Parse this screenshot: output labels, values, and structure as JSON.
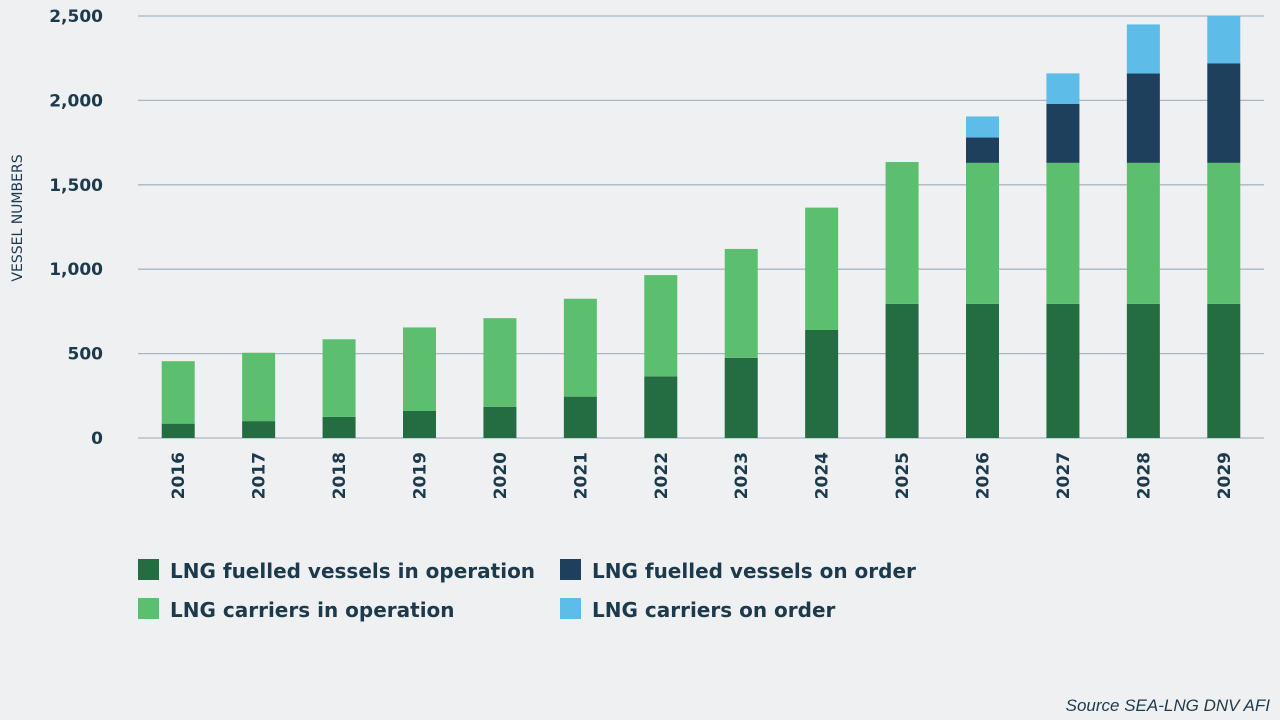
{
  "colors": {
    "background": "#eef0f1",
    "gridline": "#a9b6c2",
    "text": "#1d3a4d",
    "fuelled_operation": "#246c41",
    "fuelled_order": "#1f405c",
    "carriers_operation": "#5cbf6f",
    "carriers_order": "#5dbde8"
  },
  "chart_data": {
    "type": "bar",
    "stacked": true,
    "title": "",
    "xlabel": "",
    "ylabel": "VESSEL NUMBERS",
    "ylim": [
      0,
      2500
    ],
    "yticks": [
      0,
      500,
      1000,
      1500,
      2000,
      2500
    ],
    "ytick_labels": [
      "0",
      "500",
      "1,000",
      "1,500",
      "2,000",
      "2,500"
    ],
    "grid": true,
    "legend_position": "bottom",
    "categories": [
      "2016",
      "2017",
      "2018",
      "2019",
      "2020",
      "2021",
      "2022",
      "2023",
      "2024",
      "2025",
      "2026",
      "2027",
      "2028",
      "2029"
    ],
    "series": [
      {
        "name": "LNG fuelled vessels in operation",
        "color": "#246c41",
        "values": [
          85,
          100,
          125,
          160,
          185,
          245,
          365,
          475,
          640,
          795,
          795,
          795,
          795,
          795
        ]
      },
      {
        "name": "LNG carriers in operation",
        "color": "#5cbf6f",
        "values": [
          370,
          405,
          460,
          495,
          525,
          580,
          600,
          645,
          725,
          840,
          835,
          835,
          835,
          835
        ]
      },
      {
        "name": "LNG fuelled vessels on order",
        "color": "#1f405c",
        "values": [
          0,
          0,
          0,
          0,
          0,
          0,
          0,
          0,
          0,
          0,
          150,
          350,
          530,
          590
        ]
      },
      {
        "name": "LNG carriers on order",
        "color": "#5dbde8",
        "values": [
          0,
          0,
          0,
          0,
          0,
          0,
          0,
          0,
          0,
          0,
          125,
          180,
          290,
          280
        ]
      }
    ],
    "source": "Source SEA-LNG DNV AFI"
  }
}
